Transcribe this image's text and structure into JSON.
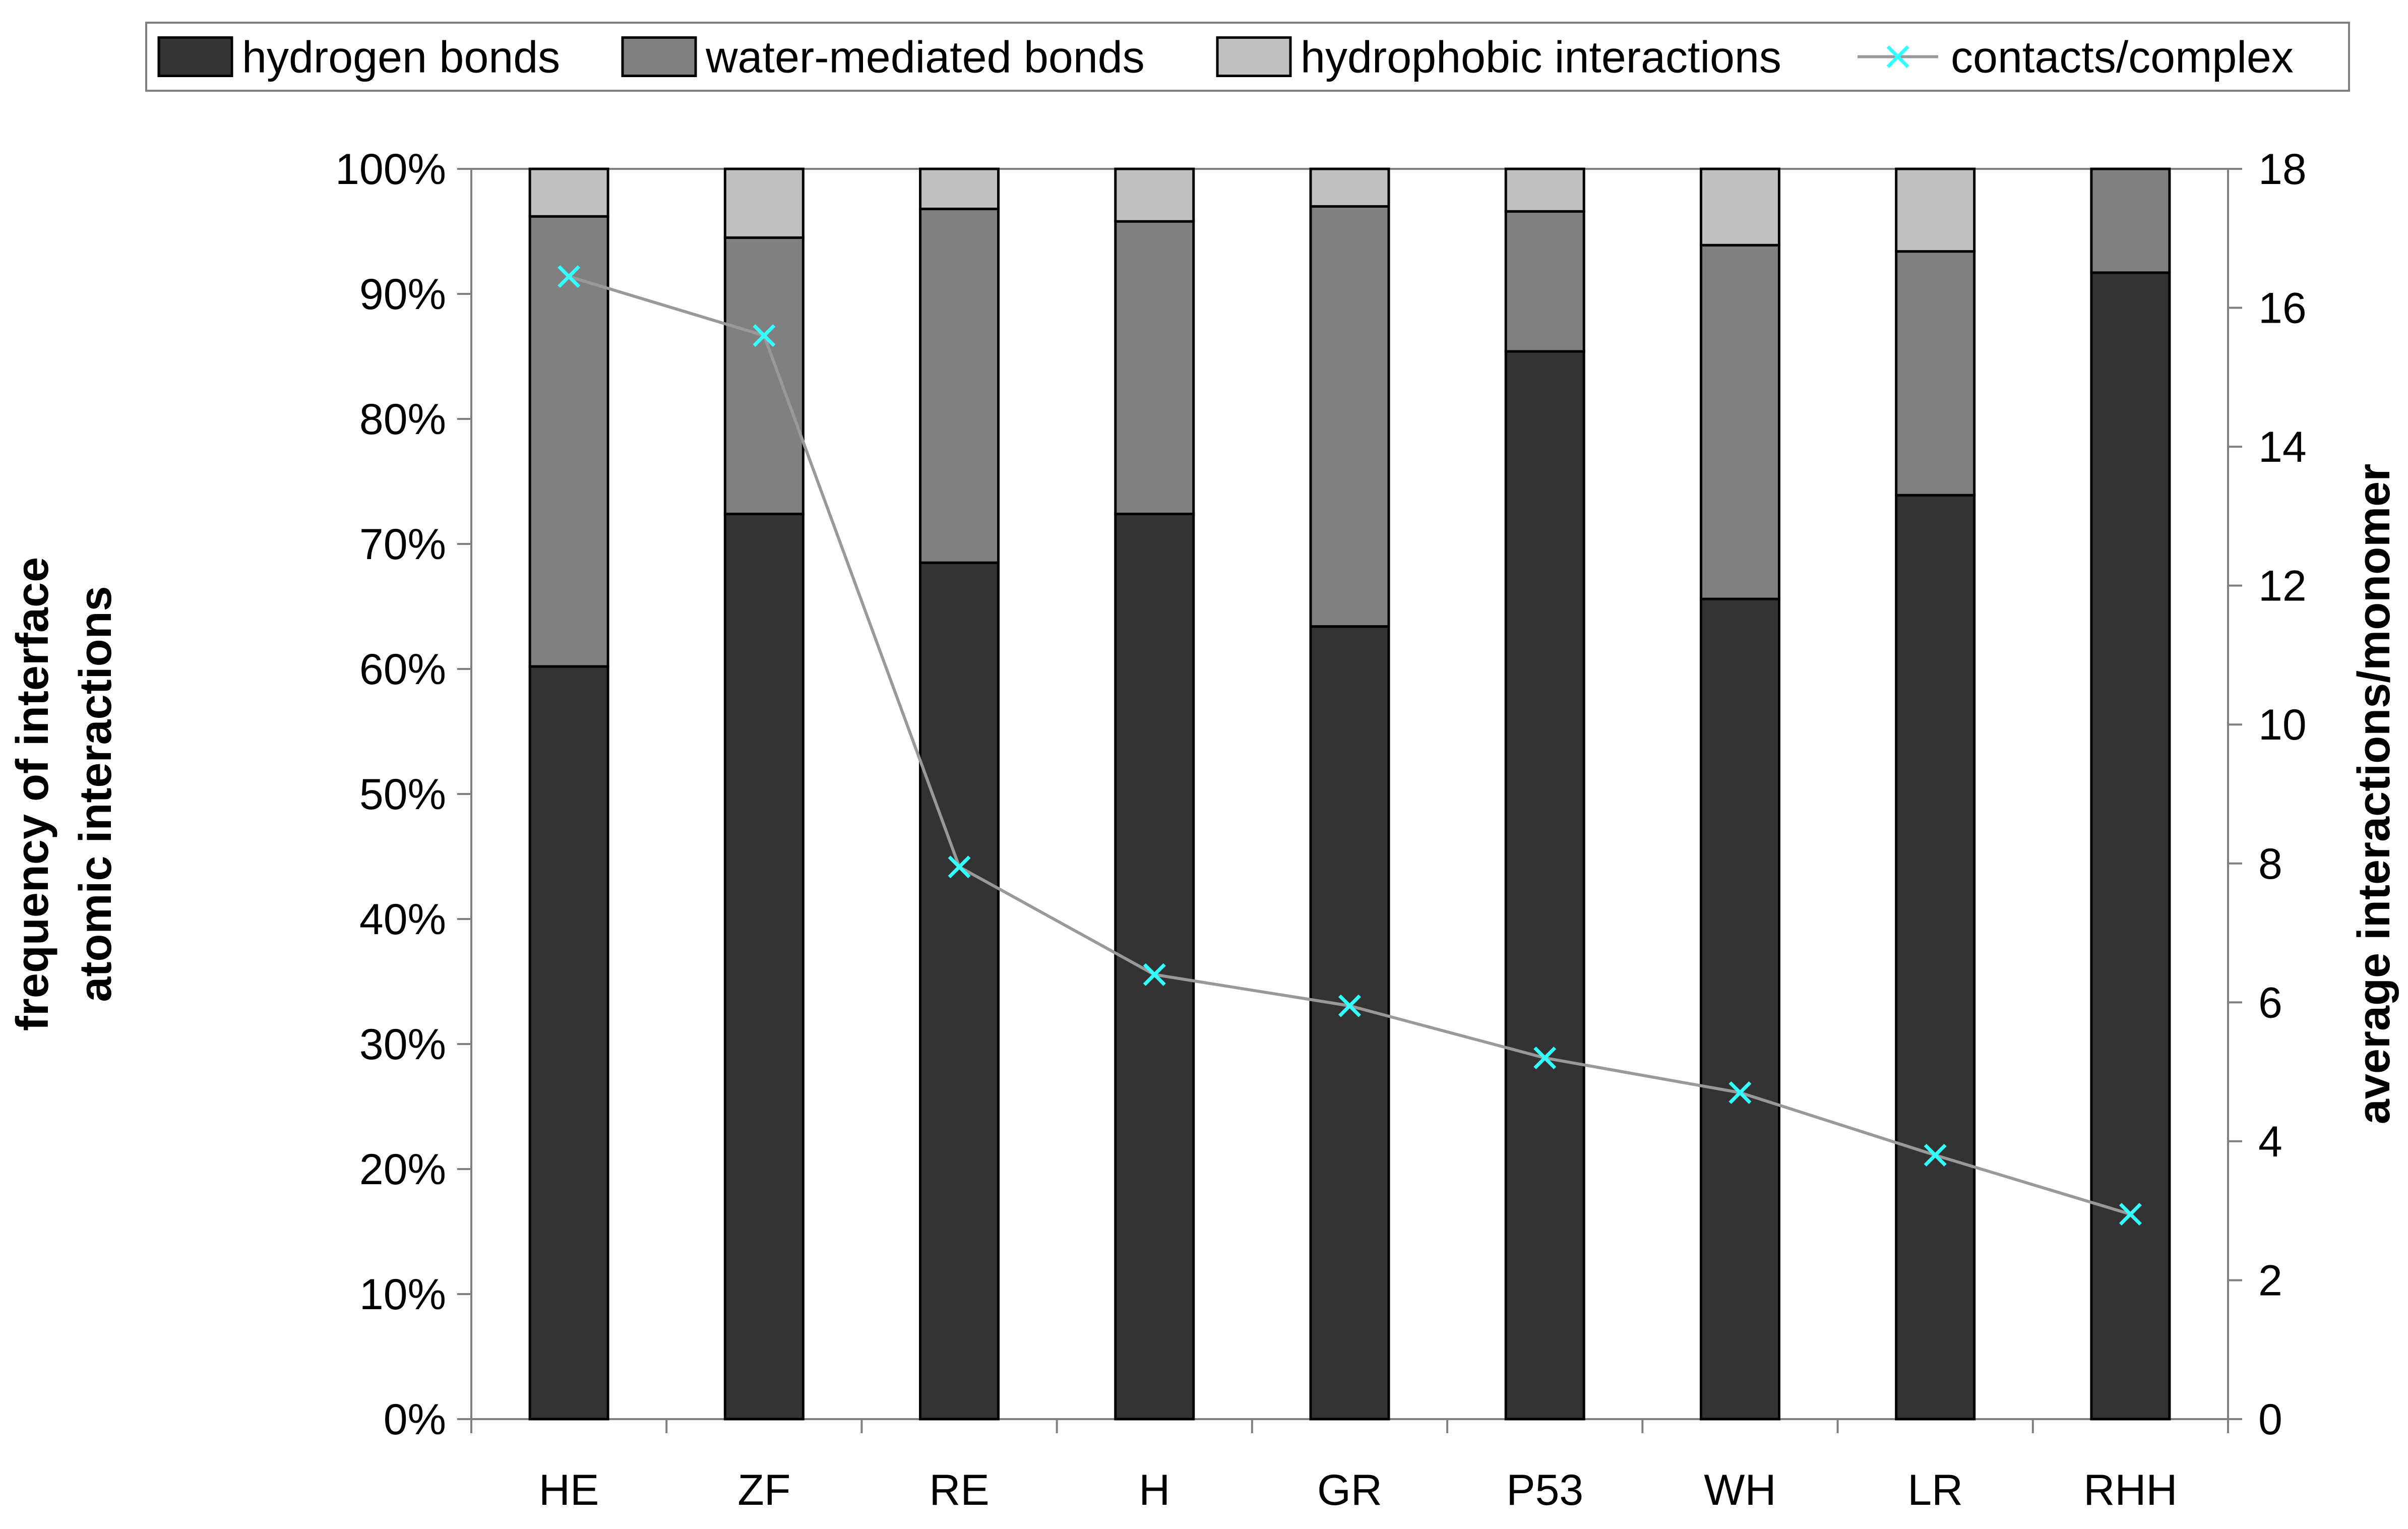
{
  "chart_data": {
    "type": "bar",
    "stacked": true,
    "categories": [
      "HE",
      "ZF",
      "RE",
      "H",
      "GR",
      "P53",
      "WH",
      "LR",
      "RHH"
    ],
    "series": [
      {
        "name": "hydrogen bonds",
        "axis": "left",
        "color": "#333333",
        "values": [
          60.2,
          72.4,
          68.5,
          72.4,
          63.4,
          85.4,
          65.6,
          73.9,
          91.7
        ]
      },
      {
        "name": "water-mediated bonds",
        "axis": "left",
        "color": "#808080",
        "values": [
          36.0,
          22.1,
          28.3,
          23.4,
          33.6,
          11.2,
          28.3,
          19.5,
          8.3
        ]
      },
      {
        "name": "hydrophobic interactions",
        "axis": "left",
        "color": "#c0c0c0",
        "values": [
          3.8,
          5.5,
          3.2,
          4.2,
          3.0,
          3.4,
          6.1,
          6.6,
          0.0
        ]
      },
      {
        "name": "contacts/complex",
        "axis": "right",
        "type": "line",
        "line_color": "#999999",
        "marker_color": "#33ffff",
        "marker": "x",
        "values": [
          16.45,
          15.6,
          7.95,
          6.4,
          5.95,
          5.2,
          4.7,
          3.8,
          2.95
        ]
      }
    ],
    "ylabel": "frequency of interface atomic interactions",
    "ylabel_lines": [
      "frequency of interface",
      "atomic interactions"
    ],
    "ylabel_right": "average interactions/monomer",
    "xlabel": "",
    "ylim": [
      0,
      100
    ],
    "ylim_right": [
      0,
      18
    ],
    "yticks": [
      "0%",
      "10%",
      "20%",
      "30%",
      "40%",
      "50%",
      "60%",
      "70%",
      "80%",
      "90%",
      "100%"
    ],
    "yticks_right": [
      "0",
      "2",
      "4",
      "6",
      "8",
      "10",
      "12",
      "14",
      "16",
      "18"
    ],
    "grid": false,
    "legend_position": "top"
  }
}
